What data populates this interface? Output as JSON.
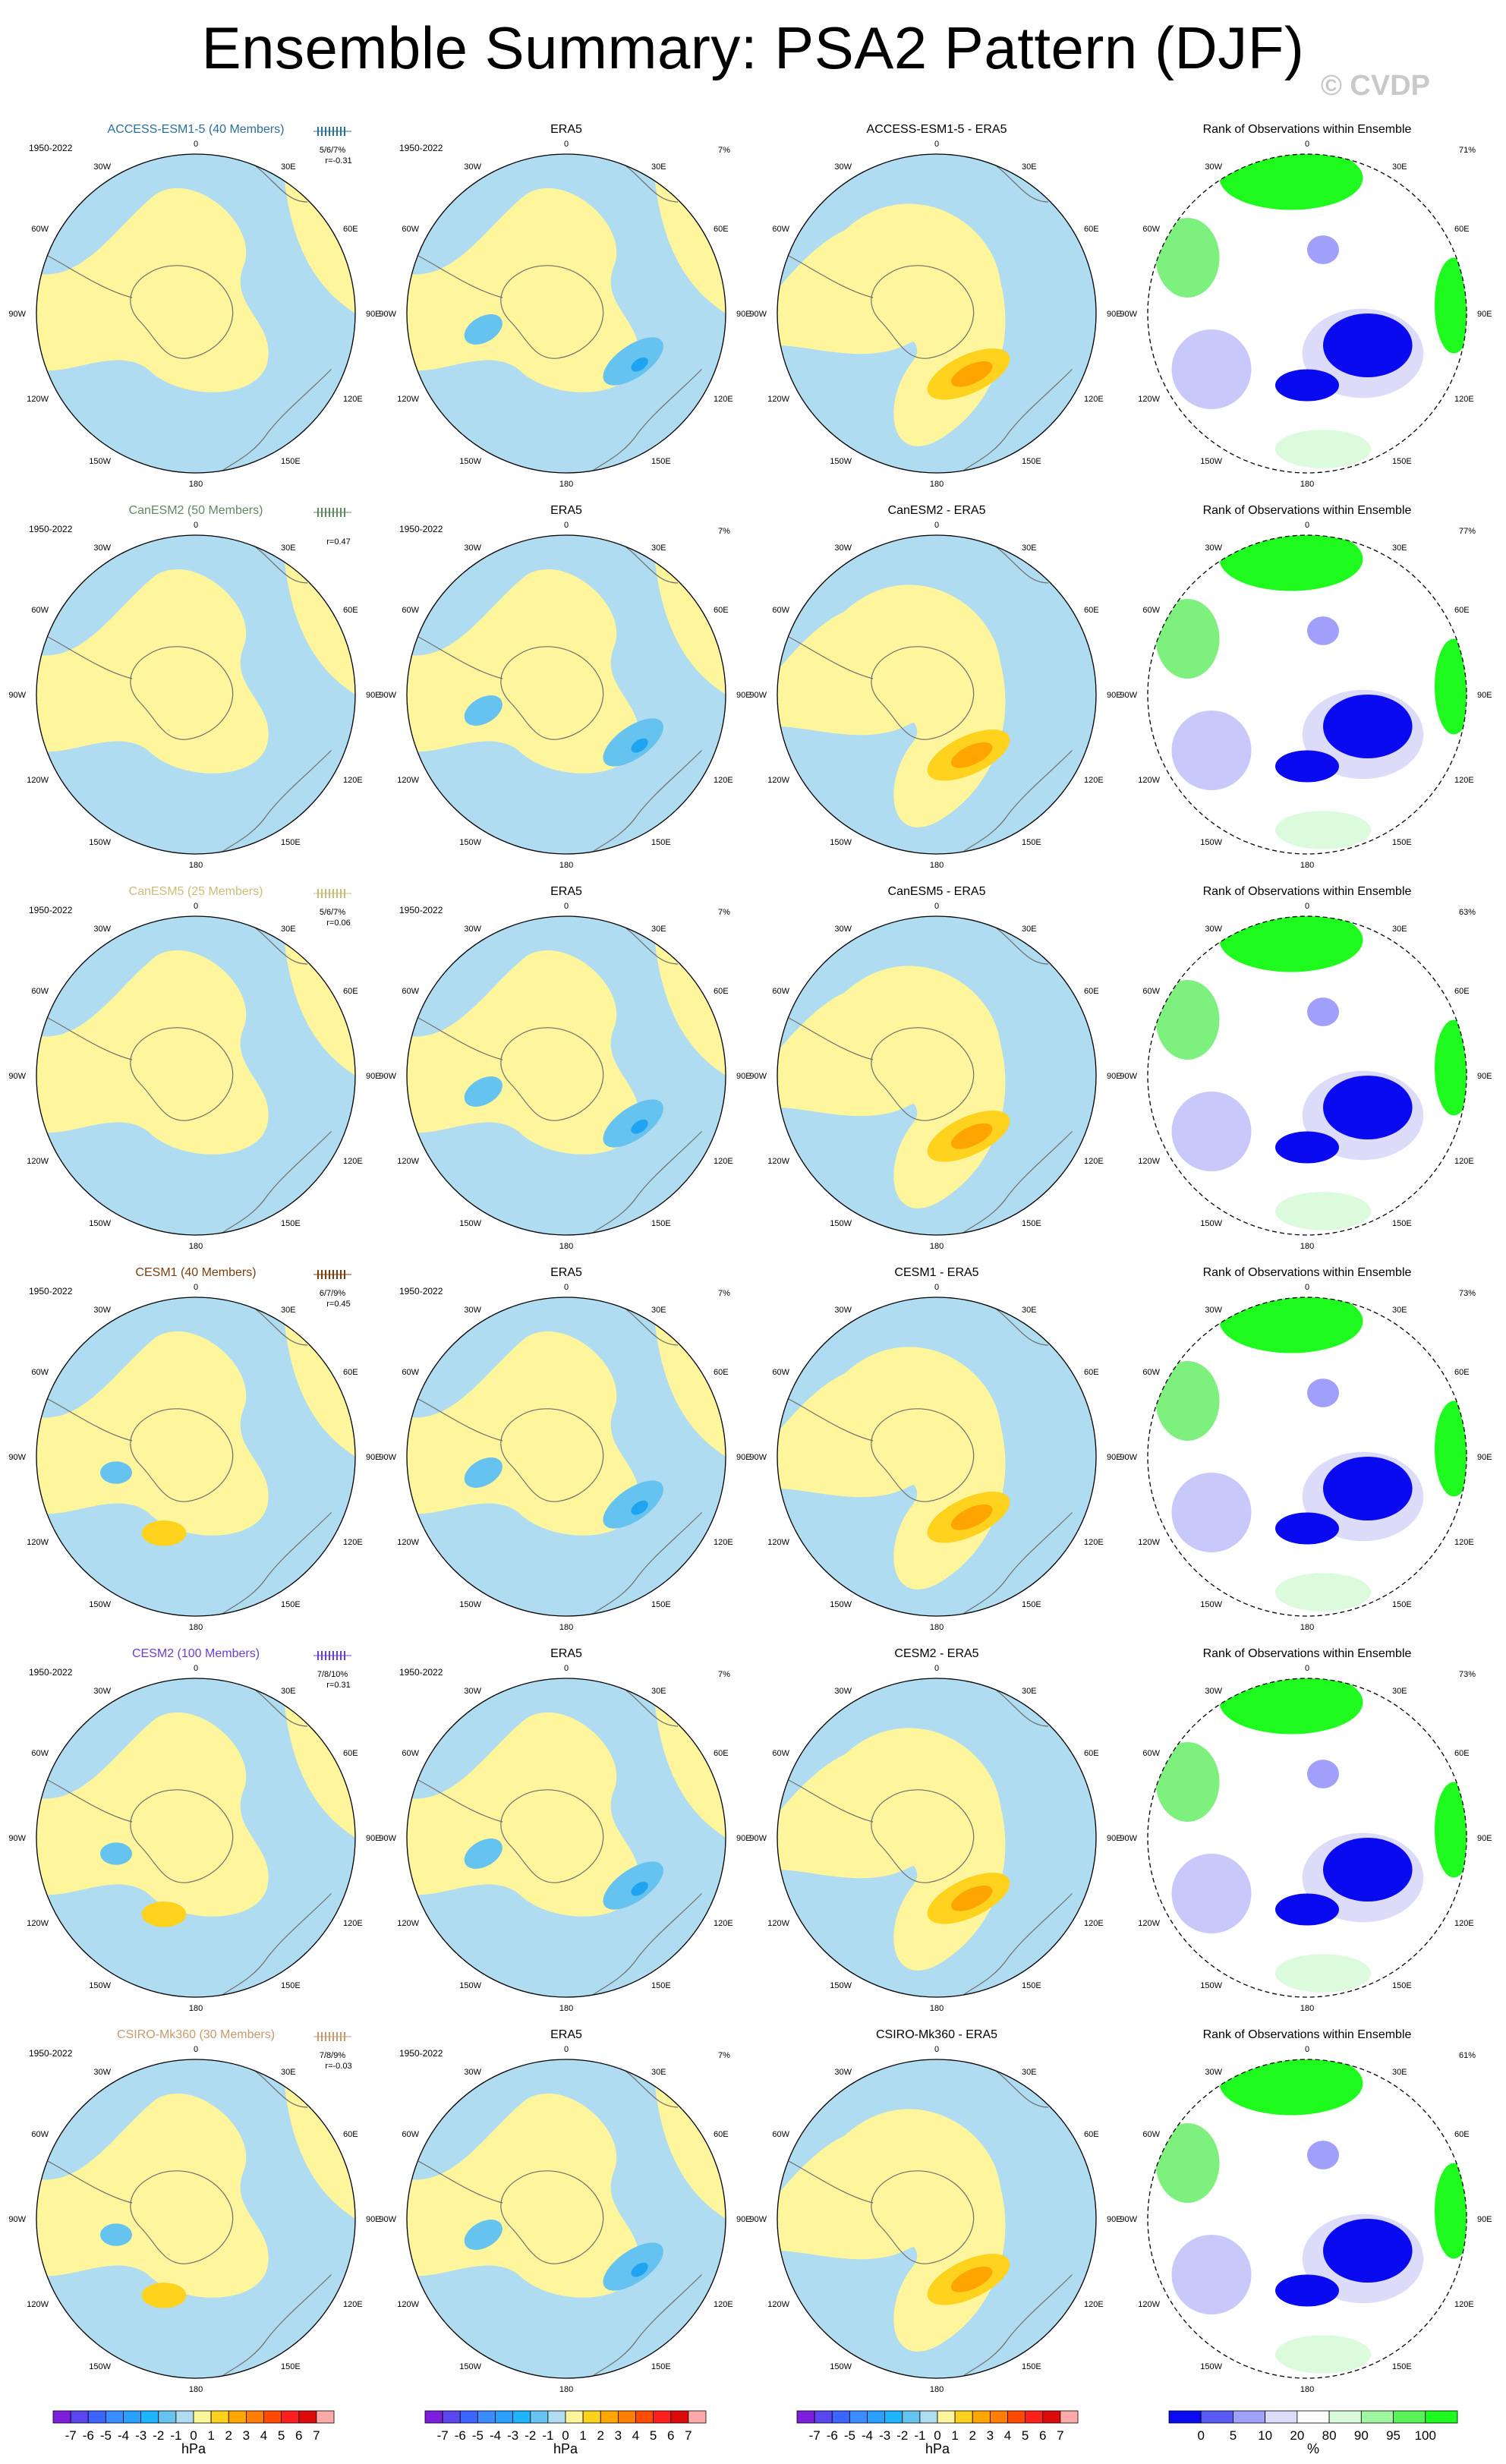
{
  "page": {
    "title": "Ensemble Summary: PSA2 Pattern (DJF)",
    "copyright": "© CVDP"
  },
  "colors": {
    "light_yellow": "#fff59d",
    "light_blue": "#afdcf0",
    "mid_blue": "#66c2ee",
    "dark_blue": "#1ea4f0",
    "mid_orange": "#ffd21e",
    "dark_orange": "#ffa500",
    "rank_green": "#1efa1e",
    "rank_blue": "#0a0af0",
    "coast": "#6e6e6e"
  },
  "rows": [
    {
      "model": "ACCESS-ESM1-5 (40 Members)",
      "model_short": "ACCESS-ESM1-5",
      "color": "#2a6f97",
      "years": "1950-2022",
      "stat": "5/6/7%",
      "r": "r=-0.31",
      "era_pct": "7%",
      "rank_pct": "71%"
    },
    {
      "model": "CanESM2 (50 Members)",
      "model_short": "CanESM2",
      "color": "#5f8a5f",
      "years": "1950-2022",
      "stat": "",
      "r": "r=0.47",
      "era_pct": "7%",
      "rank_pct": "77%"
    },
    {
      "model": "CanESM5 (25 Members)",
      "model_short": "CanESM5",
      "color": "#c7bf78",
      "years": "1950-2022",
      "stat": "5/6/7%",
      "r": "r=0.06",
      "era_pct": "7%",
      "rank_pct": "63%"
    },
    {
      "model": "CESM1 (40 Members)",
      "model_short": "CESM1",
      "color": "#7a3d0e",
      "years": "1950-2022",
      "stat": "6/7/9%",
      "r": "r=0.45",
      "era_pct": "7%",
      "rank_pct": "73%"
    },
    {
      "model": "CESM2 (100 Members)",
      "model_short": "CESM2",
      "color": "#6a3fd0",
      "years": "1950-2022",
      "stat": "7/8/10%",
      "r": "r=0.31",
      "era_pct": "7%",
      "rank_pct": "73%"
    },
    {
      "model": "CSIRO-Mk360 (30 Members)",
      "model_short": "CSIRO-Mk360",
      "color": "#c79a72",
      "years": "1950-2022",
      "stat": "7/8/9%",
      "r": "r=-0.03",
      "era_pct": "7%",
      "rank_pct": "61%"
    }
  ],
  "labels": {
    "era5": "ERA5",
    "diff_suffix": " - ERA5",
    "rank_title": "Rank of Observations within Ensemble"
  },
  "longitudes": [
    "0",
    "30E",
    "60E",
    "90E",
    "120E",
    "150E",
    "180",
    "150W",
    "120W",
    "90W",
    "60W",
    "30W"
  ],
  "colorbar_hpa": {
    "unit": "hPa",
    "labels": [
      "-7",
      "-6",
      "-5",
      "-4",
      "-3",
      "-2",
      "-1",
      "0",
      "1",
      "2",
      "3",
      "4",
      "5",
      "6",
      "7"
    ],
    "colors": [
      "#7d1edc",
      "#5a46f0",
      "#3c64ff",
      "#3c8cff",
      "#28a0ff",
      "#1eb4ff",
      "#66c2ee",
      "#afdcf0",
      "#fff59d",
      "#ffd21e",
      "#ffa500",
      "#ff7d00",
      "#ff4b00",
      "#ff1e1e",
      "#dc0a0a",
      "#ffaaaa"
    ]
  },
  "colorbar_rank": {
    "unit": "%",
    "labels": [
      "0",
      "5",
      "10",
      "20",
      "80",
      "90",
      "95",
      "100"
    ],
    "colors": [
      "#0a0af0",
      "#5a5af5",
      "#a0a0fa",
      "#dcdcfa",
      "#ffffff",
      "#dcfadc",
      "#a0f5a0",
      "#5af05a",
      "#1efa1e"
    ]
  }
}
